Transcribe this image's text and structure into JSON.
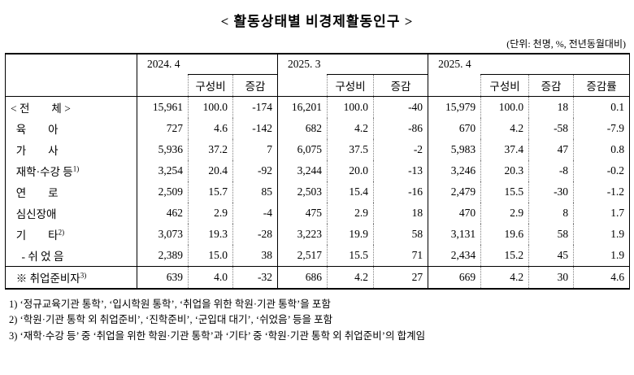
{
  "title": "< 활동상태별 비경제활동인구 >",
  "unit_note": "(단위: 천명, %, 전년동월대비)",
  "table": {
    "group_labels": [
      "2024. 4",
      "2025. 3",
      "2025. 4"
    ],
    "col_labels": {
      "ratio": "구성비",
      "change": "증감",
      "change_rate": "증감률"
    },
    "rows": [
      {
        "label": "< 전        체 >",
        "sup": "",
        "separator_above": false,
        "values": [
          "15,961",
          "100.0",
          "-174",
          "16,201",
          "100.0",
          "-40",
          "15,979",
          "100.0",
          "18",
          "0.1"
        ]
      },
      {
        "label": "  육        아",
        "sup": "",
        "separator_above": false,
        "values": [
          "727",
          "4.6",
          "-142",
          "682",
          "4.2",
          "-86",
          "670",
          "4.2",
          "-58",
          "-7.9"
        ]
      },
      {
        "label": "  가        사",
        "sup": "",
        "separator_above": false,
        "values": [
          "5,936",
          "37.2",
          "7",
          "6,075",
          "37.5",
          "-2",
          "5,983",
          "37.4",
          "47",
          "0.8"
        ]
      },
      {
        "label": "  재학·수강 등",
        "sup": "1)",
        "separator_above": false,
        "values": [
          "3,254",
          "20.4",
          "-92",
          "3,244",
          "20.0",
          "-13",
          "3,246",
          "20.3",
          "-8",
          "-0.2"
        ]
      },
      {
        "label": "  연        로",
        "sup": "",
        "separator_above": false,
        "values": [
          "2,509",
          "15.7",
          "85",
          "2,503",
          "15.4",
          "-16",
          "2,479",
          "15.5",
          "-30",
          "-1.2"
        ]
      },
      {
        "label": "  심신장애",
        "sup": "",
        "separator_above": false,
        "values": [
          "462",
          "2.9",
          "-4",
          "475",
          "2.9",
          "18",
          "470",
          "2.9",
          "8",
          "1.7"
        ]
      },
      {
        "label": "  기        타",
        "sup": "2)",
        "separator_above": false,
        "values": [
          "3,073",
          "19.3",
          "-28",
          "3,223",
          "19.9",
          "58",
          "3,131",
          "19.6",
          "58",
          "1.9"
        ]
      },
      {
        "label": "    - 쉬 었 음",
        "sup": "",
        "separator_above": false,
        "values": [
          "2,389",
          "15.0",
          "38",
          "2,517",
          "15.5",
          "71",
          "2,434",
          "15.2",
          "45",
          "1.9"
        ]
      },
      {
        "label": "  ※ 취업준비자",
        "sup": "3)",
        "separator_above": true,
        "values": [
          "639",
          "4.0",
          "-32",
          "686",
          "4.2",
          "27",
          "669",
          "4.2",
          "30",
          "4.6"
        ]
      }
    ]
  },
  "footnotes": [
    "1) ‘정규교육기관 통학’, ‘입시학원 통학’, ‘취업을 위한 학원·기관 통학’을 포함",
    "2) ‘학원·기관 통학 외 취업준비’, ‘진학준비’, ‘군입대 대기’, ‘쉬었음’ 등을 포함",
    "3) ‘재학·수강 등’ 중 ‘취업을 위한 학원·기관 통학’과 ‘기타’ 중 ‘학원·기관 통학 외 취업준비’의 합계임"
  ]
}
